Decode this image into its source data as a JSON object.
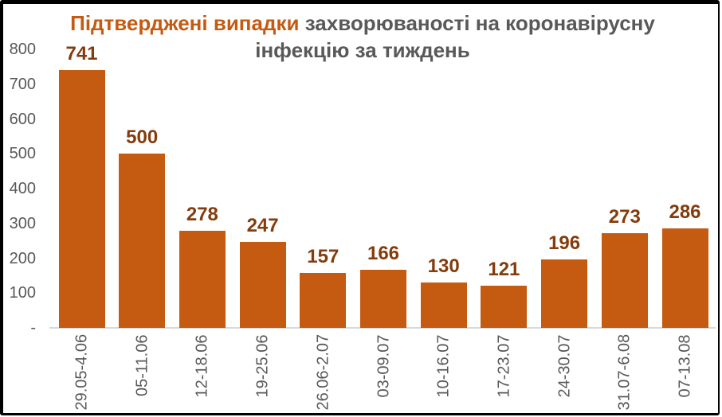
{
  "title": {
    "highlight": "Підтверджені випадки",
    "rest": " захворюваності на коронавірусну\nінфекцію за тиждень"
  },
  "chart_data": {
    "type": "bar",
    "title": "Підтверджені випадки захворюваності на коронавірусну інфекцію за тиждень",
    "categories": [
      "29.05-4.06",
      "05-11.06",
      "12-18.06",
      "19-25.06",
      "26.06-2.07",
      "03-09.07",
      "10-16.07",
      "17-23.07",
      "24-30.07",
      "31.07-6.08",
      "07-13.08"
    ],
    "values": [
      741,
      500,
      278,
      247,
      157,
      166,
      130,
      121,
      196,
      273,
      286
    ],
    "data_labels": [
      "741",
      "500",
      "278",
      "247",
      "157",
      "166",
      "130",
      "121",
      "196",
      "273",
      "286"
    ],
    "xlabel": "",
    "ylabel": "",
    "ylim": [
      0,
      800
    ],
    "yticks": [
      {
        "label": "800",
        "value": 800
      },
      {
        "label": "700",
        "value": 700
      },
      {
        "label": "600",
        "value": 600
      },
      {
        "label": "500",
        "value": 500
      },
      {
        "label": "400",
        "value": 400
      },
      {
        "label": "300",
        "value": 300
      },
      {
        "label": "200",
        "value": 200
      },
      {
        "label": "100",
        "value": 100
      },
      {
        "label": "-",
        "value": 0
      }
    ],
    "grid": false,
    "legend": false,
    "x_label_rotation_deg": -90,
    "colors": {
      "bar": "#C55A11",
      "data_label": "#843C0C",
      "title_highlight": "#C55A11",
      "title_text": "#595959",
      "axis_text": "#595959",
      "axis_line": "#D9D9D9",
      "frame": "#000000",
      "background": "#FFFFFF"
    }
  }
}
